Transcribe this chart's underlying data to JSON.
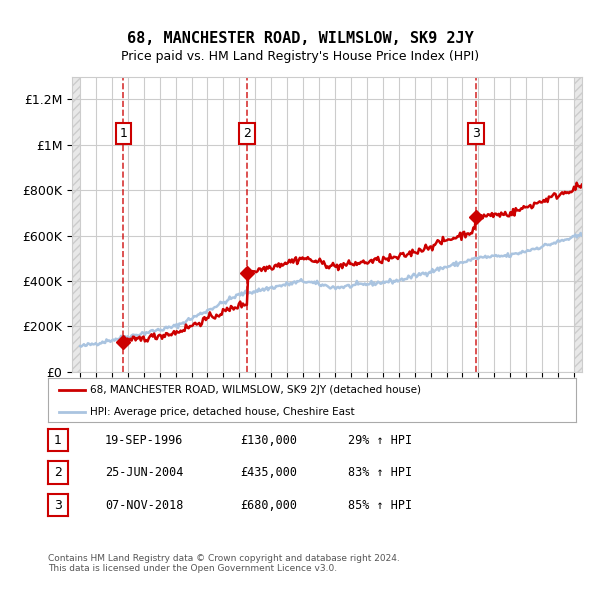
{
  "title": "68, MANCHESTER ROAD, WILMSLOW, SK9 2JY",
  "subtitle": "Price paid vs. HM Land Registry's House Price Index (HPI)",
  "ylabel": "",
  "ylim": [
    0,
    1300000
  ],
  "yticks": [
    0,
    200000,
    400000,
    600000,
    800000,
    1000000,
    1200000
  ],
  "ytick_labels": [
    "£0",
    "£200K",
    "£400K",
    "£600K",
    "£800K",
    "£1M",
    "£1.2M"
  ],
  "sale_dates": [
    1996.72,
    2004.48,
    2018.85
  ],
  "sale_prices": [
    130000,
    435000,
    680000
  ],
  "sale_labels": [
    "1",
    "2",
    "3"
  ],
  "hpi_line_color": "#aac4e0",
  "price_line_color": "#cc0000",
  "sale_dot_color": "#cc0000",
  "vline_color": "#cc0000",
  "background_hatch_color": "#e8e8e8",
  "grid_color": "#cccccc",
  "legend_house_label": "68, MANCHESTER ROAD, WILMSLOW, SK9 2JY (detached house)",
  "legend_hpi_label": "HPI: Average price, detached house, Cheshire East",
  "table_rows": [
    {
      "num": "1",
      "date": "19-SEP-1996",
      "price": "£130,000",
      "hpi": "29% ↑ HPI"
    },
    {
      "num": "2",
      "date": "25-JUN-2004",
      "price": "£435,000",
      "hpi": "83% ↑ HPI"
    },
    {
      "num": "3",
      "date": "07-NOV-2018",
      "price": "£680,000",
      "hpi": "85% ↑ HPI"
    }
  ],
  "footnote": "Contains HM Land Registry data © Crown copyright and database right 2024.\nThis data is licensed under the Open Government Licence v3.0.",
  "xmin": 1993.5,
  "xmax": 2025.5
}
